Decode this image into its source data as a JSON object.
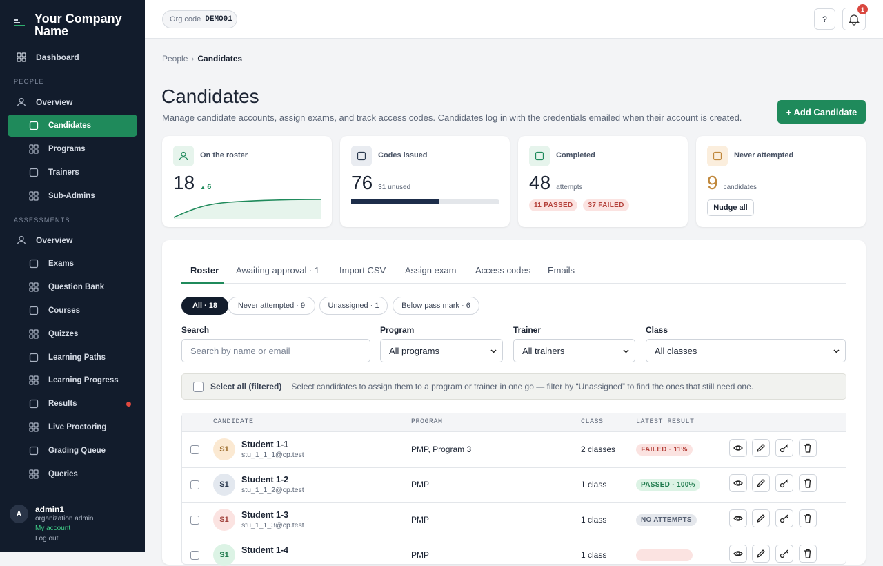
{
  "sidebar": {
    "brand": "Your Company Name",
    "dashboard": "Dashboard",
    "active": [
      0,
      1
    ],
    "alert_item": [
      1,
      7
    ],
    "sections": [
      {
        "heading": "PEOPLE",
        "items": [
          "Overview",
          "Candidates",
          "Programs",
          "Trainers",
          "Sub-Admins"
        ]
      },
      {
        "heading": "ASSESSMENTS",
        "items": [
          "Overview",
          "Exams",
          "Question Bank",
          "Courses",
          "Quizzes",
          "Learning Paths",
          "Learning Progress",
          "Results",
          "Live Proctoring",
          "Grading Queue",
          "Queries"
        ]
      }
    ],
    "user": {
      "initial": "A",
      "name": "admin1",
      "role": "organization admin",
      "links": [
        "My account",
        "Log out"
      ]
    }
  },
  "topbar": {
    "org_label": "Org code",
    "org_code": "DEMO01",
    "help": "?",
    "notifications": 1
  },
  "breadcrumb": [
    "People",
    "Candidates"
  ],
  "header": {
    "title": "Candidates",
    "description": "Manage candidate accounts, assign exams, and track access codes. Candidates log in with the credentials emailed when their account is created.",
    "action": "+ Add Candidate"
  },
  "stats": [
    {
      "label": "On the roster",
      "value": 18,
      "delta": 6
    },
    {
      "label": "Codes issued",
      "value": 76,
      "unused": 31,
      "unused_label": "unused"
    },
    {
      "label": "Completed",
      "value": 48,
      "unit": "attempts",
      "passed": 11,
      "passed_label": "PASSED",
      "failed": 37,
      "failed_label": "FAILED"
    },
    {
      "label": "Never attempted",
      "value": 9,
      "unit": "candidates",
      "button": "Nudge all"
    }
  ],
  "tabs": [
    "Roster",
    "Awaiting approval · 1",
    "Import CSV",
    "Assign exam",
    "Access codes",
    "Emails"
  ],
  "chips": [
    "All · 18",
    "Never attempted · 9",
    "Unassigned · 1",
    "Below pass mark · 6"
  ],
  "fields": [
    {
      "label": "Search",
      "placeholder": "Search by name or email"
    },
    {
      "label": "Program",
      "value": "All programs"
    },
    {
      "label": "Trainer",
      "value": "All trainers"
    },
    {
      "label": "Class",
      "value": "All classes"
    }
  ],
  "bulk": {
    "label": "Select all (filtered)",
    "hint": "Select candidates to assign them to a program or trainer in one go — filter by “Unassigned” to find the ones that still need one."
  },
  "table": {
    "columns": [
      "CANDIDATE",
      "PROGRAM",
      "CLASS",
      "LATEST RESULT"
    ],
    "rows": [
      {
        "initials": "S1",
        "name": "Student 1-1",
        "email": "stu_1_1_1@cp.test",
        "program": "PMP, Program 3",
        "class": "2 classes",
        "result": "FAILED · 11%",
        "result_color": "#b4413b",
        "result_bg": "#fbe3e1",
        "avatar_bg": "#fbe9d2",
        "avatar_color": "#9a6a2a"
      },
      {
        "initials": "S1",
        "name": "Student 1-2",
        "email": "stu_1_1_2@cp.test",
        "program": "PMP",
        "class": "1 class",
        "result": "PASSED · 100%",
        "result_color": "#1f7a4d",
        "result_bg": "#dcf3e5",
        "avatar_bg": "#e3e8ef",
        "avatar_color": "#2b3a4f"
      },
      {
        "initials": "S1",
        "name": "Student 1-3",
        "email": "stu_1_1_3@cp.test",
        "program": "PMP",
        "class": "1 class",
        "result": "NO ATTEMPTS",
        "result_color": "#566072",
        "result_bg": "#e4e7ec",
        "avatar_bg": "#fbe3e1",
        "avatar_color": "#a2423c"
      },
      {
        "initials": "S1",
        "name": "Student 1-4",
        "program": "PMP",
        "class": "1 class",
        "result_color": "#b4413b",
        "result_bg": "#fbe3e1",
        "avatar_bg": "#dcf3e5",
        "avatar_color": "#1f7a4d"
      }
    ]
  }
}
